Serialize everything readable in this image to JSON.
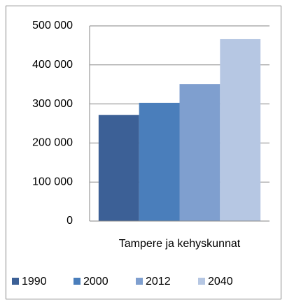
{
  "chart_data": {
    "type": "bar",
    "categories": [
      "Tampere ja kehyskunnat"
    ],
    "series": [
      {
        "name": "1990",
        "color": "#3c6096",
        "values": [
          272000
        ]
      },
      {
        "name": "2000",
        "color": "#4a7ebb",
        "values": [
          303000
        ]
      },
      {
        "name": "2012",
        "color": "#7f9fcf",
        "values": [
          351000
        ]
      },
      {
        "name": "2040",
        "color": "#b6c7e3",
        "values": [
          466000
        ]
      }
    ],
    "ylim": [
      0,
      500000
    ],
    "yticks": [
      0,
      {
        "value": 100000,
        "label": "100 000"
      },
      {
        "value": 200000,
        "label": "200 000"
      },
      {
        "value": 300000,
        "label": "300 000"
      },
      {
        "value": 400000,
        "label": "400 000"
      },
      {
        "value": 500000,
        "label": "500 000"
      }
    ],
    "grid": true,
    "legend": "bottom"
  }
}
